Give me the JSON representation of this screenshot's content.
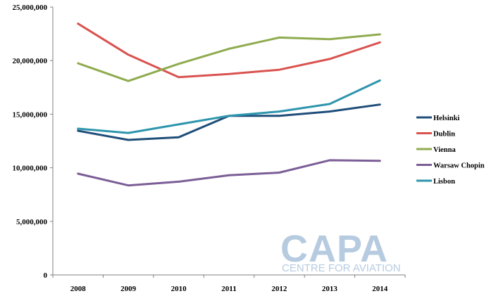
{
  "chart_data": {
    "type": "line",
    "categories": [
      "2008",
      "2009",
      "2010",
      "2011",
      "2012",
      "2013",
      "2014"
    ],
    "series": [
      {
        "name": "Helsinki",
        "color": "#1f4e79",
        "values": [
          13450000,
          12600000,
          12850000,
          14850000,
          14850000,
          15250000,
          15900000
        ]
      },
      {
        "name": "Dublin",
        "color": "#d9534f",
        "values": [
          23450000,
          20550000,
          18450000,
          18750000,
          19150000,
          20150000,
          21700000
        ]
      },
      {
        "name": "Vienna",
        "color": "#8fab4f",
        "values": [
          19750000,
          18100000,
          19700000,
          21100000,
          22150000,
          22000000,
          22450000
        ]
      },
      {
        "name": "Warsaw Chopin",
        "color": "#7b5e96",
        "values": [
          9450000,
          8350000,
          8700000,
          9300000,
          9550000,
          10700000,
          10650000
        ]
      },
      {
        "name": "Lisbon",
        "color": "#2e95ad",
        "values": [
          13650000,
          13250000,
          14050000,
          14850000,
          15250000,
          15950000,
          18150000
        ]
      }
    ],
    "y_ticks": [
      "0",
      "5,000,000",
      "10,000,000",
      "15,000,000",
      "20,000,000",
      "25,000,000"
    ],
    "ylim": [
      0,
      25000000
    ],
    "grid": false,
    "legend": "right",
    "title": "",
    "xlabel": "",
    "ylabel": ""
  },
  "watermark": {
    "logo": "CAPA",
    "subtitle": "CENTRE FOR AVIATION",
    "color": "#b7cbe0"
  }
}
